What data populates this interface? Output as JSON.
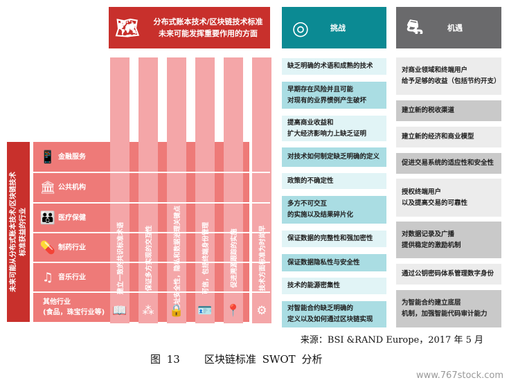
{
  "header": {
    "standards": {
      "icon": "map-icon",
      "line1": "分布式账本技术/区块链技术标准",
      "line2": "未来可能发挥重要作用的方面"
    },
    "challenges": {
      "icon": "maze-icon",
      "title": "挑战"
    },
    "opportunities": {
      "icon": "road-icon",
      "title": "机遇"
    }
  },
  "left_label": {
    "line1": "未来可能从分布式账本技术/区块链技术",
    "line2": "标准获益的行业"
  },
  "industries": [
    {
      "icon": "phone-euro-icon",
      "label": "金融服务"
    },
    {
      "icon": "bank-icon",
      "label": "公共机构"
    },
    {
      "icon": "family-health-icon",
      "label": "医疗保健"
    },
    {
      "icon": "pill-icon",
      "label": "制药行业"
    },
    {
      "icon": "music-note-icon",
      "label": "音乐行业"
    },
    {
      "icon": "",
      "label": "其他行业",
      "label2": "(食品，珠宝行业等)"
    }
  ],
  "aspects": [
    {
      "icon": "book-icon",
      "label": "建立一致的共识标准术语"
    },
    {
      "icon": "network-icon",
      "label": "保证多方实现的交互性"
    },
    {
      "icon": "security-hand-icon",
      "label": "地址安全性，隐私和数据治理关键点"
    },
    {
      "icon": "id-card-icon",
      "label": "可信，包括终端身份管理"
    },
    {
      "icon": "location-pin-icon",
      "label": "促进溯源跟踪的实施"
    },
    {
      "icon": "gear-icon",
      "label": "技术方面标准为时尚早"
    }
  ],
  "challenges": [
    [
      "缺乏明确的术语和成熟的技术"
    ],
    [
      "早期存在风险并且可能",
      "对现有的业界惯例产生破坏"
    ],
    [
      "提高商业收益和",
      "扩大经济影响力上缺乏证明"
    ],
    [
      "对技术如何制定缺乏明确的定义"
    ],
    [
      "政策的不确定性"
    ],
    [
      "多方不可交互",
      "的实施以及结果碎片化"
    ],
    [
      "保证数据的完整性和强加密性"
    ],
    [
      "保证数据隐私性与安全性"
    ],
    [
      "技术的能源密集性"
    ],
    [
      "对智能合约缺乏明确的",
      "定义以及如何通过区块链实现"
    ]
  ],
  "opportunities": [
    [
      "对商业领域和终端用户",
      "给予足够的收益（包括节约开支）"
    ],
    [
      "建立新的税收渠道"
    ],
    [
      "建立新的经济和商业模型"
    ],
    [
      "促进交易系统的适应性和安全性"
    ],
    [
      "授权终端用户",
      "以及提高交易的可靠性"
    ],
    [
      "对数据记录及广播",
      "提供稳定的激励机制"
    ],
    [
      "通过公钥密码体系管理数字身份"
    ],
    [
      "为智能合约建立底层",
      "机制，加强智能代码审计能力"
    ]
  ],
  "caption": {
    "source": "来源：BSI &RAND Europe，2017 年 5 月",
    "figure": "图 13    区块链标准 SWOT 分析"
  },
  "watermark": "www.767stock.com",
  "colors": {
    "red": "#c8302c",
    "salmon": "#ee7a78",
    "pink": "#f4a6a8",
    "teal": "#0b8a93",
    "gray": "#6a6a6c"
  }
}
